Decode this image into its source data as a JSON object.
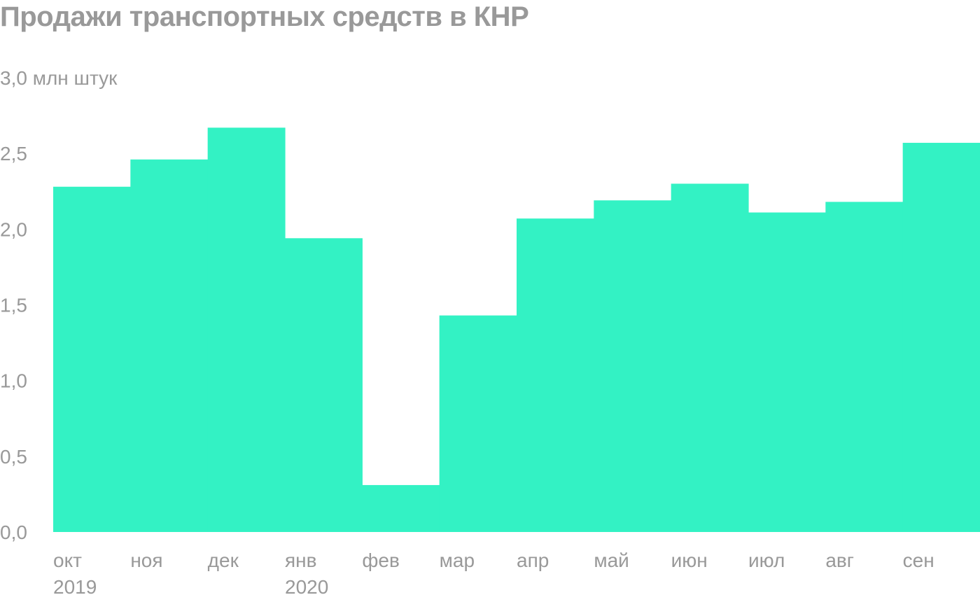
{
  "chart_data": {
    "type": "bar",
    "title": "Продажи транспортных средств в КНР",
    "ylabel": "млн штук",
    "ylim": [
      0,
      3.0
    ],
    "y_ticks": [
      "0,0",
      "0,5",
      "1,0",
      "1,5",
      "2,0",
      "2,5",
      "3,0 млн штук"
    ],
    "y_tick_values": [
      0,
      0.5,
      1.0,
      1.5,
      2.0,
      2.5,
      3.0
    ],
    "categories": [
      "окт",
      "ноя",
      "дек",
      "янв",
      "фев",
      "мар",
      "апр",
      "май",
      "июн",
      "июл",
      "авг",
      "сен"
    ],
    "year_labels": [
      {
        "index": 0,
        "label": "2019"
      },
      {
        "index": 3,
        "label": "2020"
      }
    ],
    "values": [
      2.28,
      2.46,
      2.67,
      1.94,
      0.31,
      1.43,
      2.07,
      2.19,
      2.3,
      2.11,
      2.18,
      2.57
    ],
    "colors": {
      "bar": "#33f2c4",
      "text": "#999999"
    },
    "grid": false,
    "legend": "none"
  }
}
